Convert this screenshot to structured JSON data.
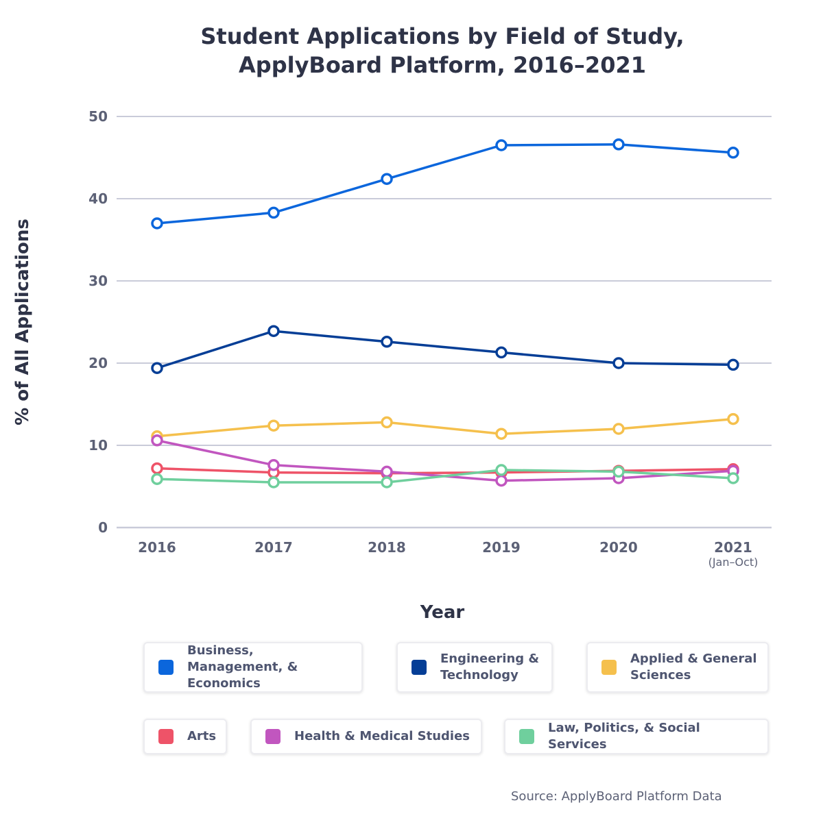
{
  "chart_data": {
    "type": "line",
    "title": "Student Applications by Field of Study, ApplyBoard Platform, 2016–2021",
    "x_label": "Year",
    "y_label": "% of All Applications",
    "source": "Source: ApplyBoard Platform Data",
    "categories": [
      "2016",
      "2017",
      "2018",
      "2019",
      "2020",
      "2021"
    ],
    "category_notes": [
      null,
      null,
      null,
      null,
      null,
      "(Jan–Oct)"
    ],
    "ylim": [
      0,
      50
    ],
    "yticks": [
      0,
      10,
      20,
      30,
      40,
      50
    ],
    "grid": true,
    "legend": "bottom",
    "series": [
      {
        "name": "Business, Management, & Economics",
        "color": "#0b66dc",
        "values": [
          37.0,
          38.3,
          42.4,
          46.5,
          46.6,
          45.6
        ]
      },
      {
        "name": "Engineering & Technology",
        "color": "#053e96",
        "values": [
          19.4,
          23.9,
          22.6,
          21.3,
          20.0,
          19.8
        ]
      },
      {
        "name": "Applied & General Sciences",
        "color": "#f5c04d",
        "values": [
          11.1,
          12.4,
          12.8,
          11.4,
          12.0,
          13.2
        ]
      },
      {
        "name": "Arts",
        "color": "#ee5368",
        "values": [
          7.2,
          6.7,
          6.6,
          6.7,
          6.9,
          7.1
        ]
      },
      {
        "name": "Health & Medical Studies",
        "color": "#c156bf",
        "values": [
          10.6,
          7.6,
          6.8,
          5.7,
          6.0,
          6.9
        ]
      },
      {
        "name": "Law, Politics, & Social Services",
        "color": "#6fcf9d",
        "values": [
          5.9,
          5.5,
          5.5,
          7.0,
          6.8,
          6.0
        ]
      }
    ]
  }
}
